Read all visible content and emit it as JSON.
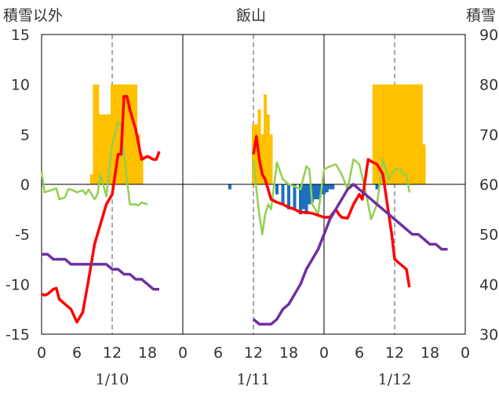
{
  "chart_data": {
    "type": "bar+line",
    "title": "飯山",
    "left_axis_label": "積雪以外",
    "right_axis_label": "積雪",
    "ylim_left": [
      -15,
      15
    ],
    "ylim_right": [
      30,
      90
    ],
    "yticks_left": [
      "15",
      "10",
      "5",
      "0",
      "-5",
      "-10",
      "-15"
    ],
    "yticks_right": [
      "90",
      "80",
      "70",
      "60",
      "50",
      "40",
      "30"
    ],
    "xlim_hours": [
      0,
      72
    ],
    "x_tick_labels": [
      "0",
      "6",
      "12",
      "18",
      "0",
      "6",
      "12",
      "18",
      "0",
      "6",
      "12",
      "18",
      "0"
    ],
    "date_labels": [
      "1/10",
      "1/11",
      "1/12"
    ],
    "grid": "vertical lines at 0 and 12 h of each day",
    "colors": {
      "orange_bars": "#ffc000",
      "blue_bars": "#1f6fbf",
      "red_line": "#ff0000",
      "green_line": "#92d050",
      "purple_line": "#7030a0"
    },
    "orange_bars": [
      [
        8.5,
        1
      ],
      [
        9,
        10
      ],
      [
        9.5,
        10
      ],
      [
        10,
        7
      ],
      [
        10.5,
        7
      ],
      [
        11,
        7
      ],
      [
        11.5,
        7
      ],
      [
        12,
        10
      ],
      [
        12.5,
        10
      ],
      [
        13,
        10
      ],
      [
        13.5,
        10
      ],
      [
        14,
        10
      ],
      [
        14.5,
        10
      ],
      [
        15,
        10
      ],
      [
        15.5,
        10
      ],
      [
        16,
        10
      ],
      [
        16.5,
        5
      ],
      [
        17,
        3
      ],
      [
        36,
        6
      ],
      [
        36.5,
        6
      ],
      [
        37,
        7.5
      ],
      [
        37.5,
        5
      ],
      [
        38,
        9
      ],
      [
        38.5,
        7
      ],
      [
        39,
        5
      ],
      [
        56.5,
        10
      ],
      [
        57,
        10
      ],
      [
        57.5,
        10
      ],
      [
        58,
        10
      ],
      [
        58.5,
        10
      ],
      [
        59,
        10
      ],
      [
        59.5,
        10
      ],
      [
        60,
        10
      ],
      [
        60.5,
        10
      ],
      [
        61,
        10
      ],
      [
        61.5,
        10
      ],
      [
        62,
        10
      ],
      [
        62.5,
        10
      ],
      [
        63,
        10
      ],
      [
        63.5,
        10
      ],
      [
        64,
        10
      ],
      [
        64.5,
        10
      ],
      [
        65,
        4
      ]
    ],
    "blue_bars": [
      [
        32,
        -0.5
      ],
      [
        40,
        -1
      ],
      [
        41,
        -2
      ],
      [
        42,
        -2.5
      ],
      [
        43,
        -2.5
      ],
      [
        44,
        -3
      ],
      [
        44.5,
        -2.5
      ],
      [
        45,
        -3
      ],
      [
        45.5,
        -2
      ],
      [
        46,
        -1.8
      ],
      [
        46.5,
        -1.5
      ],
      [
        47,
        -1.5
      ],
      [
        47.5,
        -1
      ],
      [
        48,
        -1
      ],
      [
        48.5,
        -0.8
      ],
      [
        49,
        -0.5
      ],
      [
        49.5,
        -0.5
      ],
      [
        57,
        -0.5
      ]
    ],
    "series": [
      {
        "color": "red",
        "axis": "left",
        "points": [
          [
            0,
            -11.0
          ],
          [
            0.5,
            -11.1
          ],
          [
            1,
            -11.0
          ],
          [
            2,
            -10.5
          ],
          [
            2.5,
            -10.4
          ],
          [
            3,
            -11.5
          ],
          [
            4,
            -12.0
          ],
          [
            5,
            -12.5
          ],
          [
            6,
            -13.8
          ],
          [
            7,
            -12.8
          ],
          [
            8,
            -9.5
          ],
          [
            9,
            -6.0
          ],
          [
            10,
            -4.0
          ],
          [
            11,
            -2.0
          ],
          [
            12,
            -1.0
          ],
          [
            13,
            3.0
          ],
          [
            13.5,
            3.0
          ],
          [
            14,
            8.8
          ],
          [
            14.5,
            8.8
          ],
          [
            15,
            7.5
          ],
          [
            16,
            5.5
          ],
          [
            17,
            2.5
          ],
          [
            18,
            2.8
          ],
          [
            19,
            2.5
          ],
          [
            19.5,
            2.5
          ],
          [
            20,
            3.3
          ],
          [
            36,
            3.0
          ],
          [
            36.5,
            4.8
          ],
          [
            37,
            2.5
          ],
          [
            37.5,
            1.0
          ],
          [
            38,
            0.5
          ],
          [
            39,
            -1.5
          ],
          [
            40,
            -1.8
          ],
          [
            41,
            -2.0
          ],
          [
            42,
            -2.3
          ],
          [
            43,
            -2.5
          ],
          [
            44,
            -2.8
          ],
          [
            45,
            -2.8
          ],
          [
            46,
            -2.9
          ],
          [
            47,
            -3.1
          ],
          [
            48,
            -3.3
          ],
          [
            49,
            -3.3
          ],
          [
            50,
            -2.5
          ],
          [
            50.5,
            -3.0
          ],
          [
            51,
            -3.3
          ],
          [
            52,
            -3.4
          ],
          [
            53,
            -2.0
          ],
          [
            54,
            -1.0
          ],
          [
            54.5,
            -1.5
          ],
          [
            55,
            0.5
          ],
          [
            55.5,
            2.5
          ],
          [
            56,
            2.3
          ],
          [
            57,
            2.0
          ],
          [
            58,
            1.0
          ],
          [
            59,
            -3.0
          ],
          [
            59.5,
            -5.0
          ],
          [
            60,
            -7.5
          ],
          [
            61,
            -8.0
          ],
          [
            62,
            -8.5
          ],
          [
            62.5,
            -10.3
          ]
        ]
      },
      {
        "color": "green",
        "axis": "left",
        "points": [
          [
            0,
            1.3
          ],
          [
            0.5,
            -0.8
          ],
          [
            1,
            -0.7
          ],
          [
            2,
            -0.5
          ],
          [
            2.5,
            -0.4
          ],
          [
            3,
            -1.5
          ],
          [
            4,
            -1.3
          ],
          [
            4.5,
            -0.5
          ],
          [
            5,
            -0.5
          ],
          [
            6,
            -0.8
          ],
          [
            7,
            -0.6
          ],
          [
            7.5,
            -1.0
          ],
          [
            8,
            -0.5
          ],
          [
            9,
            -1.5
          ],
          [
            9.5,
            -1.0
          ],
          [
            10,
            1.0
          ],
          [
            11,
            -1.2
          ],
          [
            12,
            4.0
          ],
          [
            13,
            6.2
          ],
          [
            13.5,
            6.0
          ],
          [
            14,
            3.0
          ],
          [
            15,
            -2.0
          ],
          [
            16,
            -2.0
          ],
          [
            16.5,
            -2.1
          ],
          [
            17,
            -1.8
          ],
          [
            18,
            -2.0
          ],
          [
            36,
            2.5
          ],
          [
            36.5,
            -0.5
          ],
          [
            37,
            -3.0
          ],
          [
            37.5,
            -5.0
          ],
          [
            38,
            -3.0
          ],
          [
            38.5,
            -2.0
          ],
          [
            39,
            -2.5
          ],
          [
            40,
            2.2
          ],
          [
            41,
            0.5
          ],
          [
            42,
            0.0
          ],
          [
            43,
            -0.2
          ],
          [
            44,
            -0.5
          ],
          [
            45,
            1.8
          ],
          [
            45.5,
            1.5
          ],
          [
            46,
            -2.0
          ],
          [
            47,
            -3.0
          ],
          [
            48,
            1.5
          ],
          [
            49,
            1.8
          ],
          [
            50,
            2.0
          ],
          [
            51,
            1.0
          ],
          [
            52,
            -0.5
          ],
          [
            53,
            2.5
          ],
          [
            54,
            2.0
          ],
          [
            55,
            -0.5
          ],
          [
            56,
            -3.5
          ],
          [
            57,
            -2.0
          ],
          [
            58,
            2.5
          ],
          [
            59,
            0.5
          ],
          [
            60,
            1.5
          ],
          [
            61,
            1.5
          ],
          [
            61.5,
            1.0
          ],
          [
            62,
            1.0
          ],
          [
            62.5,
            -0.8
          ]
        ]
      },
      {
        "color": "purple",
        "axis": "right",
        "points": [
          [
            0,
            46
          ],
          [
            1,
            46
          ],
          [
            2,
            45
          ],
          [
            3,
            45
          ],
          [
            4,
            45
          ],
          [
            5,
            44
          ],
          [
            6,
            44
          ],
          [
            7,
            44
          ],
          [
            8,
            44
          ],
          [
            9,
            44
          ],
          [
            10,
            44
          ],
          [
            11,
            44
          ],
          [
            12,
            43
          ],
          [
            13,
            43
          ],
          [
            14,
            42
          ],
          [
            15,
            42
          ],
          [
            16,
            41
          ],
          [
            17,
            41
          ],
          [
            18,
            40
          ],
          [
            19,
            39
          ],
          [
            20,
            39
          ],
          [
            36,
            33
          ],
          [
            37,
            32
          ],
          [
            38,
            32
          ],
          [
            39,
            32
          ],
          [
            40,
            33
          ],
          [
            41,
            35
          ],
          [
            42,
            36
          ],
          [
            43,
            38
          ],
          [
            44,
            40
          ],
          [
            45,
            43
          ],
          [
            46,
            45
          ],
          [
            47,
            47
          ],
          [
            48,
            50
          ],
          [
            49,
            53
          ],
          [
            50,
            55
          ],
          [
            51,
            57
          ],
          [
            52,
            59
          ],
          [
            53,
            60
          ],
          [
            54,
            59
          ],
          [
            55,
            58
          ],
          [
            56,
            57
          ],
          [
            57,
            56
          ],
          [
            58,
            55
          ],
          [
            59,
            54
          ],
          [
            60,
            53
          ],
          [
            61,
            52
          ],
          [
            62,
            51
          ],
          [
            63,
            50
          ],
          [
            64,
            50
          ],
          [
            65,
            49
          ],
          [
            66,
            48
          ],
          [
            67,
            48
          ],
          [
            68,
            47
          ],
          [
            69,
            47
          ]
        ]
      }
    ]
  }
}
